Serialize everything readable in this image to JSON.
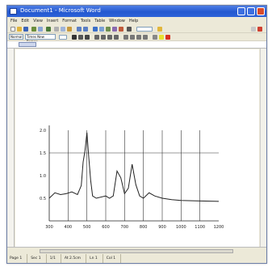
{
  "window": {
    "title": "Document1 - Microsoft Word"
  },
  "menu": {
    "items": [
      "File",
      "Edit",
      "View",
      "Insert",
      "Format",
      "Tools",
      "Table",
      "Window",
      "Help"
    ]
  },
  "toolbar": {
    "style": "Normal",
    "font": "Times New Roman"
  },
  "status": {
    "page": "Page 1",
    "sec": "Sec 1",
    "pos": "1/1",
    "at": "At 2.5cm",
    "line": "Ln 1",
    "col": "Col 1"
  },
  "chart_data": {
    "type": "line",
    "title": "",
    "xlabel": "",
    "ylabel": "",
    "xlim": [
      300,
      1200
    ],
    "ylim": [
      0.0,
      2.0
    ],
    "x_ticks": [
      "300",
      "400",
      "500",
      "600",
      "700",
      "800",
      "900",
      "1000",
      "1100",
      "1200"
    ],
    "y_ticks": [
      "0.5",
      "1.0",
      "1.5",
      "2.0"
    ],
    "grid": "vertical lines plus one horizontal line at 1.5",
    "series": [
      {
        "x": [
          300,
          330,
          360,
          390,
          420,
          450,
          470,
          480,
          490,
          500,
          510,
          520,
          530,
          550,
          600,
          620,
          640,
          660,
          680,
          700,
          720,
          740,
          760,
          780,
          800,
          830,
          860,
          900,
          950,
          1000,
          1100,
          1200
        ],
        "y": [
          0.5,
          0.62,
          0.58,
          0.6,
          0.64,
          0.58,
          0.78,
          1.3,
          1.55,
          1.95,
          1.4,
          0.9,
          0.55,
          0.5,
          0.55,
          0.5,
          0.55,
          1.1,
          0.95,
          0.6,
          0.72,
          1.25,
          0.8,
          0.55,
          0.5,
          0.62,
          0.55,
          0.5,
          0.47,
          0.45,
          0.44,
          0.43
        ]
      }
    ]
  }
}
